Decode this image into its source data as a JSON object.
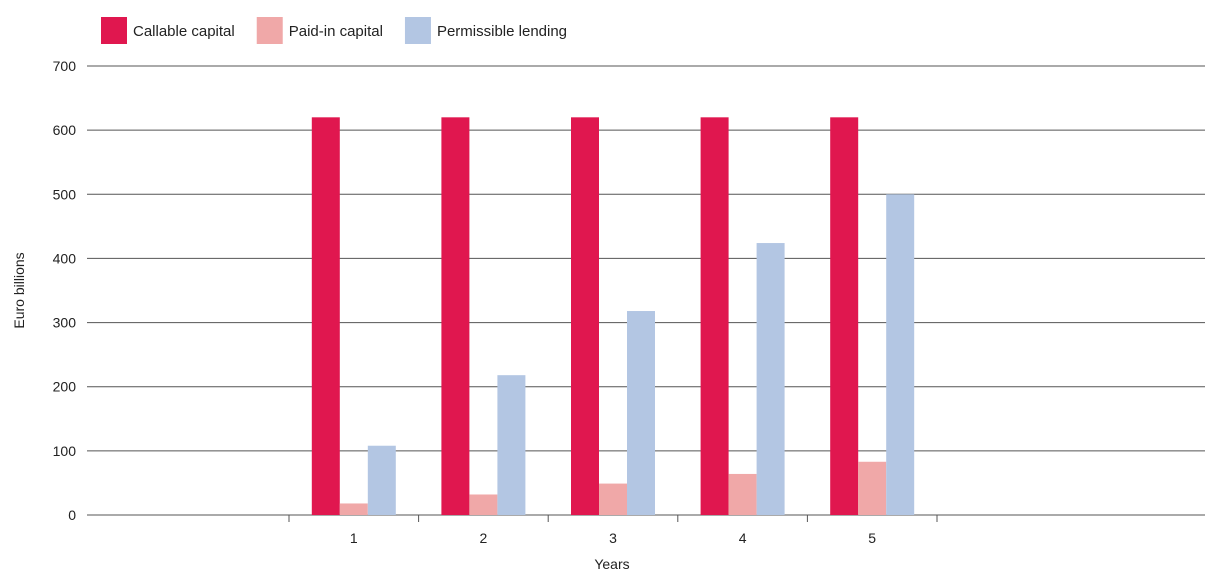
{
  "chart_data": {
    "type": "bar",
    "title": "",
    "xlabel": "Years",
    "ylabel": "Euro billions",
    "categories": [
      "1",
      "2",
      "3",
      "4",
      "5"
    ],
    "series": [
      {
        "name": "Callable capital",
        "color": "#e0174f",
        "values": [
          620,
          620,
          620,
          620,
          620
        ]
      },
      {
        "name": "Paid-in capital",
        "color": "#f0a8a8",
        "values": [
          18,
          32,
          49,
          64,
          83
        ]
      },
      {
        "name": "Permissible lending",
        "color": "#b3c6e3",
        "values": [
          108,
          218,
          318,
          424,
          500
        ]
      }
    ],
    "ylim": [
      0,
      700
    ],
    "yticks": [
      0,
      100,
      200,
      300,
      400,
      500,
      600,
      700
    ],
    "grid": true,
    "legend_position": "top-left"
  }
}
